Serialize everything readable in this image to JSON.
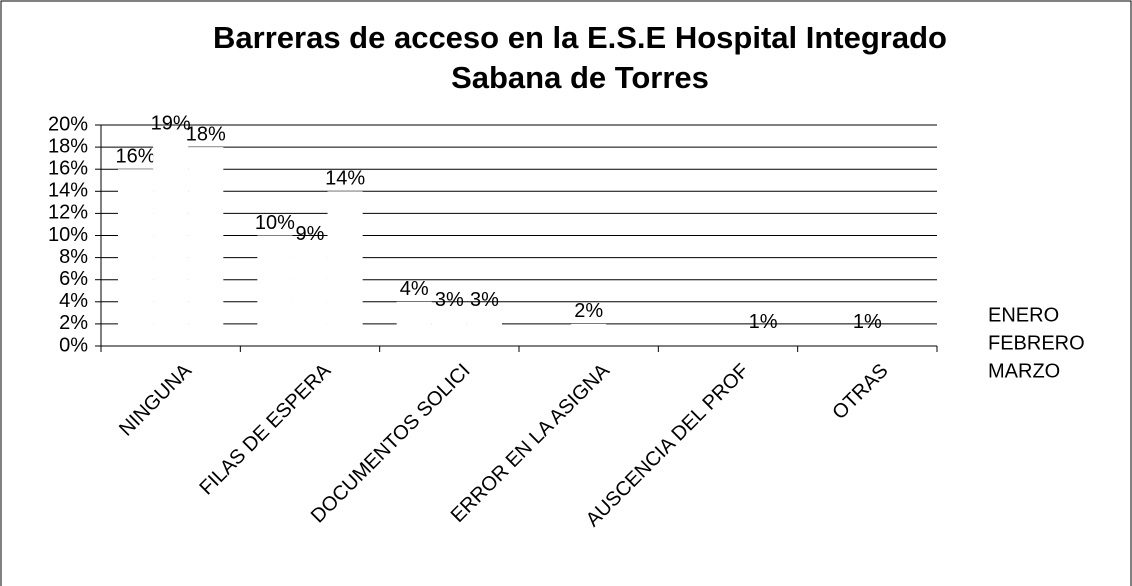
{
  "chart_data": {
    "type": "bar",
    "title": [
      "Barreras de acceso en la E.S.E Hospital Integrado",
      "Sabana de Torres"
    ],
    "categories": [
      "NINGUNA",
      "FILAS DE ESPERA",
      "DOCUMENTOS  SOLICI",
      "ERROR EN LA ASIGNA",
      "AUSCENCIA DEL PROF",
      "OTRAS"
    ],
    "series": [
      {
        "name": "ENERO",
        "color": "#ffffff",
        "values": [
          16,
          10,
          4,
          null,
          null,
          null
        ],
        "value_labels": [
          "16%",
          "10%",
          "4%",
          null,
          null,
          null
        ]
      },
      {
        "name": "FEBRERO",
        "color": "#ffffff",
        "values": [
          19,
          9,
          3,
          2,
          null,
          1
        ],
        "value_labels": [
          "19%",
          "9%",
          "3%",
          "2%",
          null,
          "1%"
        ]
      },
      {
        "name": "MARZO",
        "color": "#ffffff",
        "values": [
          18,
          14,
          3,
          null,
          1,
          null
        ],
        "value_labels": [
          "18%",
          "14%",
          "3%",
          null,
          "1%",
          null
        ]
      }
    ],
    "ylim": [
      0,
      20
    ],
    "yticks": [
      {
        "value": 0,
        "label": "0%"
      },
      {
        "value": 2,
        "label": "2%"
      },
      {
        "value": 4,
        "label": "4%"
      },
      {
        "value": 6,
        "label": "6%"
      },
      {
        "value": 8,
        "label": "8%"
      },
      {
        "value": 10,
        "label": "10%"
      },
      {
        "value": 12,
        "label": "12%"
      },
      {
        "value": 14,
        "label": "14%"
      },
      {
        "value": 16,
        "label": "16%"
      },
      {
        "value": 18,
        "label": "18%"
      },
      {
        "value": 20,
        "label": "20%"
      }
    ],
    "grid": true
  }
}
